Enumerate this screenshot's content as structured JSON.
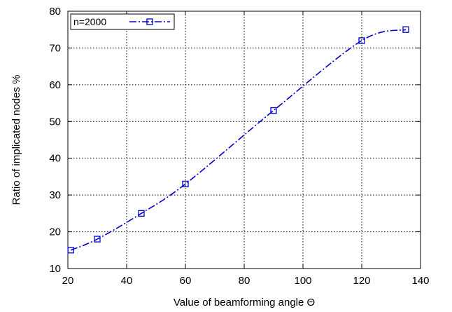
{
  "chart_data": {
    "type": "line",
    "title": "",
    "xlabel": "Value of beamforming angle Θ",
    "ylabel": "Ratio of implicated nodes %",
    "xlim": [
      20,
      140
    ],
    "ylim": [
      10,
      80
    ],
    "xticks": [
      20,
      40,
      60,
      80,
      100,
      120,
      140
    ],
    "yticks": [
      10,
      20,
      30,
      40,
      50,
      60,
      70,
      80
    ],
    "grid": true,
    "legend_position": "top-left",
    "series": [
      {
        "name": "n=2000",
        "color": "#0000cc",
        "line_style": "dash-dot",
        "marker": "square",
        "x": [
          21,
          30,
          45,
          60,
          90,
          120,
          135
        ],
        "y": [
          15,
          18,
          25,
          33,
          53,
          72,
          75
        ]
      }
    ]
  }
}
